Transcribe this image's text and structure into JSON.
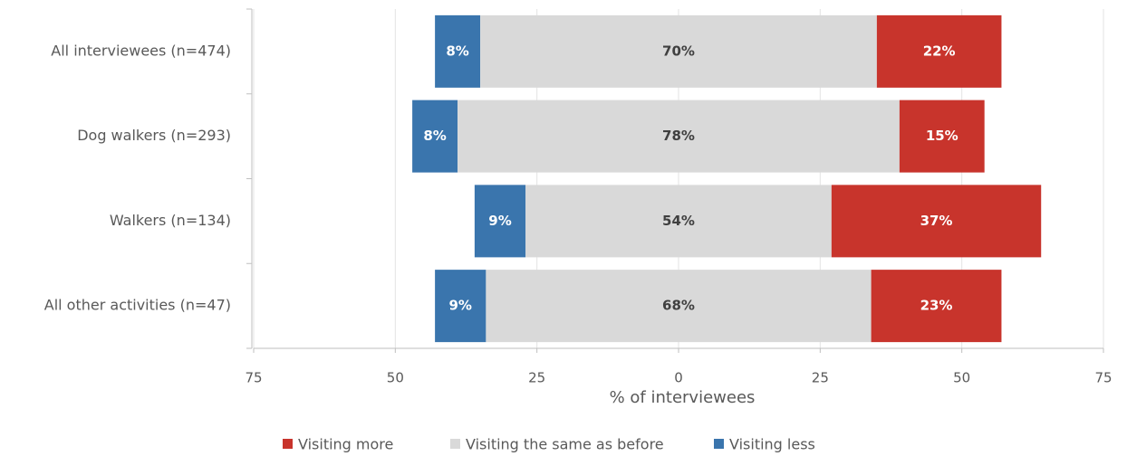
{
  "chart_data": {
    "type": "diverging_bar",
    "x_label": "% of interviewees",
    "categories": [
      "All interviewees (n=474)",
      "Dog walkers (n=293)",
      "Walkers (n=134)",
      "All other activities (n=47)"
    ],
    "series": [
      {
        "name": "Visiting more",
        "color": "#c8342c",
        "values": [
          22,
          15,
          37,
          23
        ],
        "value_labels": [
          "22%",
          "15%",
          "37%",
          "23%"
        ]
      },
      {
        "name": "Visiting the same as before",
        "color": "#d9d9d9",
        "values": [
          70,
          78,
          54,
          68
        ],
        "value_labels": [
          "70%",
          "78%",
          "54%",
          "68%"
        ]
      },
      {
        "name": "Visiting less",
        "color": "#3a75ad",
        "values": [
          8,
          8,
          9,
          9
        ],
        "value_labels": [
          "8%",
          "8%",
          "9%",
          "9%"
        ]
      }
    ],
    "xlim": [
      -75,
      75
    ],
    "xticks": [
      {
        "value": -75,
        "label": "75"
      },
      {
        "value": -50,
        "label": "50"
      },
      {
        "value": -25,
        "label": "25"
      },
      0,
      25,
      50,
      75
    ],
    "grid": true,
    "legend": "bottom"
  }
}
